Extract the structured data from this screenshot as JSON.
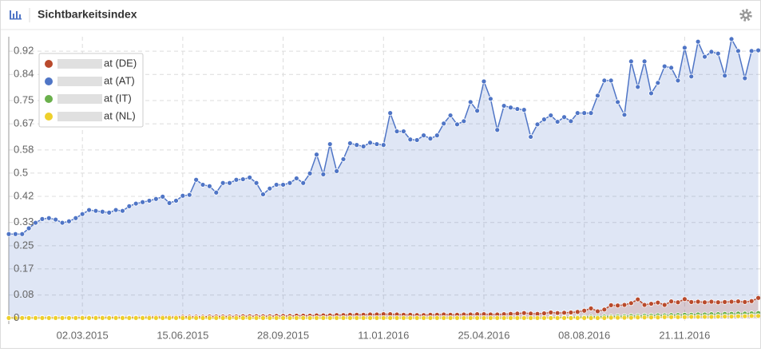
{
  "header": {
    "title": "Sichtbarkeitsindex"
  },
  "chart_data": {
    "type": "line",
    "legend": "top-left",
    "grid": true,
    "ylim": [
      -0.02,
      0.97
    ],
    "yticks": [
      0,
      0.08,
      0.17,
      0.25,
      0.33,
      0.42,
      0.5,
      0.58,
      0.67,
      0.75,
      0.84,
      0.92
    ],
    "categories": [
      null,
      null,
      null,
      null,
      null,
      null,
      null,
      null,
      null,
      null,
      null,
      "02.03.2015",
      null,
      null,
      null,
      null,
      null,
      null,
      null,
      null,
      null,
      null,
      null,
      null,
      null,
      null,
      "15.06.2015",
      null,
      null,
      null,
      null,
      null,
      null,
      null,
      null,
      null,
      null,
      null,
      null,
      null,
      null,
      "28.09.2015",
      null,
      null,
      null,
      null,
      null,
      null,
      null,
      null,
      null,
      null,
      null,
      null,
      null,
      null,
      "11.01.2016",
      null,
      null,
      null,
      null,
      null,
      null,
      null,
      null,
      null,
      null,
      null,
      null,
      null,
      null,
      "25.04.2016",
      null,
      null,
      null,
      null,
      null,
      null,
      null,
      null,
      null,
      null,
      null,
      null,
      null,
      null,
      "08.08.2016",
      null,
      null,
      null,
      null,
      null,
      null,
      null,
      null,
      null,
      null,
      null,
      null,
      null,
      null,
      "21.11.2016",
      null,
      null,
      null,
      null,
      null,
      null,
      null,
      null,
      null,
      null,
      null
    ],
    "series": [
      {
        "name": "at (DE)",
        "color": "#b94a2c",
        "area": true,
        "values": [
          0.002,
          0.002,
          0.002,
          0.002,
          0.002,
          0.002,
          0.002,
          0.002,
          0.002,
          0.002,
          0.002,
          0.003,
          0.003,
          0.003,
          0.003,
          0.003,
          0.003,
          0.003,
          0.003,
          0.003,
          0.003,
          0.004,
          0.004,
          0.004,
          0.004,
          0.004,
          0.005,
          0.005,
          0.005,
          0.005,
          0.006,
          0.006,
          0.006,
          0.006,
          0.006,
          0.007,
          0.007,
          0.007,
          0.007,
          0.007,
          0.008,
          0.008,
          0.008,
          0.009,
          0.009,
          0.009,
          0.01,
          0.01,
          0.01,
          0.011,
          0.011,
          0.012,
          0.012,
          0.012,
          0.013,
          0.013,
          0.014,
          0.014,
          0.013,
          0.012,
          0.012,
          0.011,
          0.011,
          0.012,
          0.012,
          0.013,
          0.012,
          0.012,
          0.013,
          0.013,
          0.014,
          0.014,
          0.013,
          0.013,
          0.014,
          0.015,
          0.016,
          0.018,
          0.016,
          0.015,
          0.017,
          0.02,
          0.018,
          0.019,
          0.02,
          0.022,
          0.026,
          0.034,
          0.024,
          0.03,
          0.045,
          0.044,
          0.046,
          0.052,
          0.065,
          0.046,
          0.05,
          0.054,
          0.046,
          0.058,
          0.055,
          0.066,
          0.056,
          0.057,
          0.055,
          0.057,
          0.055,
          0.056,
          0.057,
          0.058,
          0.056,
          0.059,
          0.07
        ]
      },
      {
        "name": "at (AT)",
        "color": "#4f75c6",
        "area": true,
        "values": [
          0.29,
          0.29,
          0.29,
          0.31,
          0.329,
          0.342,
          0.345,
          0.34,
          0.329,
          0.334,
          0.345,
          0.359,
          0.373,
          0.37,
          0.367,
          0.364,
          0.373,
          0.37,
          0.386,
          0.395,
          0.4,
          0.405,
          0.411,
          0.419,
          0.397,
          0.405,
          0.422,
          0.425,
          0.477,
          0.46,
          0.455,
          0.433,
          0.466,
          0.466,
          0.477,
          0.479,
          0.485,
          0.466,
          0.427,
          0.447,
          0.46,
          0.46,
          0.466,
          0.482,
          0.466,
          0.499,
          0.564,
          0.496,
          0.6,
          0.507,
          0.548,
          0.603,
          0.597,
          0.592,
          0.605,
          0.6,
          0.597,
          0.707,
          0.644,
          0.644,
          0.616,
          0.614,
          0.63,
          0.619,
          0.63,
          0.671,
          0.699,
          0.668,
          0.679,
          0.745,
          0.715,
          0.816,
          0.756,
          0.649,
          0.732,
          0.726,
          0.721,
          0.718,
          0.625,
          0.668,
          0.685,
          0.699,
          0.677,
          0.693,
          0.679,
          0.707,
          0.707,
          0.707,
          0.767,
          0.819,
          0.819,
          0.745,
          0.701,
          0.885,
          0.797,
          0.885,
          0.775,
          0.811,
          0.868,
          0.863,
          0.819,
          0.932,
          0.833,
          0.953,
          0.901,
          0.918,
          0.912,
          0.836,
          0.962,
          0.921,
          0.827,
          0.921,
          0.923
        ]
      },
      {
        "name": "at (IT)",
        "color": "#6ab04c",
        "area": false,
        "values": [
          0,
          0,
          0,
          0,
          0,
          0,
          0,
          0,
          0,
          0,
          0,
          0,
          0,
          0,
          0,
          0,
          0,
          0,
          0,
          0,
          0,
          0,
          0,
          0,
          0,
          0,
          0,
          0,
          0,
          0,
          0,
          0,
          0,
          0,
          0,
          0,
          0,
          0,
          0,
          0,
          0,
          0,
          0,
          0,
          0,
          0,
          0,
          0,
          0,
          0,
          0,
          0,
          0,
          0,
          0,
          0,
          0,
          0,
          0,
          0,
          0,
          0,
          0,
          0,
          0,
          0,
          0,
          0,
          0,
          0,
          0,
          0,
          0,
          0,
          0,
          0,
          0,
          0,
          0,
          0,
          0,
          0.002,
          0.002,
          0.003,
          0.003,
          0.004,
          0.004,
          0.005,
          0.005,
          0.006,
          0.006,
          0.007,
          0.007,
          0.008,
          0.008,
          0.009,
          0.009,
          0.01,
          0.01,
          0.011,
          0.011,
          0.012,
          0.012,
          0.013,
          0.013,
          0.014,
          0.014,
          0.015,
          0.015,
          0.016,
          0.016,
          0.017,
          0.018
        ]
      },
      {
        "name": "at (NL)",
        "color": "#eed02c",
        "area": false,
        "values": [
          0.001,
          0.001,
          0.001,
          0.001,
          0.001,
          0.001,
          0.001,
          0.001,
          0.001,
          0.001,
          0.001,
          0.001,
          0.001,
          0.001,
          0.001,
          0.001,
          0.001,
          0.001,
          0.001,
          0.001,
          0.001,
          0.001,
          0.001,
          0.001,
          0.001,
          0.001,
          0.001,
          0.001,
          0.001,
          0.001,
          0.001,
          0.001,
          0.001,
          0.001,
          0.001,
          0.001,
          0.001,
          0.001,
          0.001,
          0.001,
          0.001,
          0.001,
          0.001,
          0.001,
          0.001,
          0.001,
          0.001,
          0.001,
          0.001,
          0.001,
          0.001,
          0.001,
          0.001,
          0.001,
          0.001,
          0.001,
          0.001,
          0.001,
          0.001,
          0.001,
          0.001,
          0.001,
          0.001,
          0.001,
          0.001,
          0.001,
          0.001,
          0.001,
          0.001,
          0.001,
          0.001,
          0.001,
          0.001,
          0.001,
          0.001,
          0.001,
          0.001,
          0.001,
          0.001,
          0.001,
          0.001,
          0.001,
          0.001,
          0.001,
          0.001,
          0.001,
          0.001,
          0.001,
          0.001,
          0.001,
          0.002,
          0.002,
          0.002,
          0.002,
          0.003,
          0.003,
          0.003,
          0.003,
          0.004,
          0.004,
          0.004,
          0.004,
          0.005,
          0.005,
          0.005,
          0.005,
          0.006,
          0.006,
          0.006,
          0.007,
          0.007,
          0.008,
          0.008
        ]
      }
    ]
  }
}
